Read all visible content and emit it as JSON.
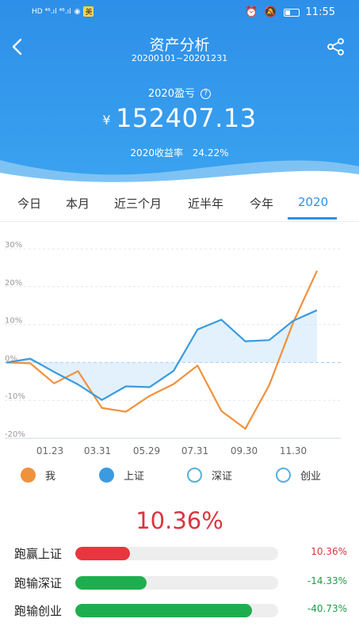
{
  "statusbar": {
    "time": "11:55",
    "app_badge": "美",
    "left_icons": "HD ⁴⁶.ıl ⁴⁶.ıl"
  },
  "header": {
    "title": "资产分析",
    "date_range": "20200101~20201231",
    "pl_label": "2020盈亏",
    "currency": "¥",
    "amount": "152407.13",
    "rate_label": "2020收益率",
    "rate_value": "24.22%"
  },
  "tabs": [
    {
      "label": "今日",
      "active": false
    },
    {
      "label": "本月",
      "active": false
    },
    {
      "label": "近三个月",
      "active": false
    },
    {
      "label": "近半年",
      "active": false
    },
    {
      "label": "今年",
      "active": false
    },
    {
      "label": "2020",
      "active": true
    }
  ],
  "chart_data": {
    "type": "line",
    "x_ticks": [
      "01.23",
      "03.31",
      "05.29",
      "07.31",
      "09.30",
      "11.30"
    ],
    "y_ticks": [
      "30%",
      "20%",
      "10%",
      "0%",
      "-10%",
      "-20%"
    ],
    "ylim": [
      -20,
      30
    ],
    "series": [
      {
        "name": "我",
        "color": "#f0913c",
        "values": [
          0,
          -0.2,
          -5.5,
          -2.3,
          -12,
          -13,
          -8.8,
          -5.7,
          -0.8,
          -12.8,
          -17.5,
          -6,
          10.5,
          24.2
        ]
      },
      {
        "name": "上证",
        "color": "#3a9be0",
        "area": true,
        "values": [
          0,
          1,
          -2.5,
          -5.8,
          -9.9,
          -6.3,
          -6.5,
          -2.2,
          8.7,
          11.3,
          5.6,
          5.9,
          11,
          13.8
        ]
      }
    ],
    "legend": [
      {
        "name": "我",
        "color": "#f0913c",
        "style": "filled"
      },
      {
        "name": "上证",
        "color": "#3a9be0",
        "style": "filled"
      },
      {
        "name": "深证",
        "color": "#55aee0",
        "style": "hollow"
      },
      {
        "name": "创业",
        "color": "#55aee0",
        "style": "hollow"
      }
    ]
  },
  "summary": {
    "big_pct": "10.36%",
    "bars": [
      {
        "label": "跑赢上证",
        "value": "10.36%",
        "fill": 0.27,
        "color": "#e8363f",
        "text_color": "#d9363e"
      },
      {
        "label": "跑输深证",
        "value": "-14.33%",
        "fill": 0.35,
        "color": "#1fae4f",
        "text_color": "#1e9c48"
      },
      {
        "label": "跑输创业",
        "value": "-40.73%",
        "fill": 0.87,
        "color": "#1fae4f",
        "text_color": "#1e9c48"
      }
    ]
  }
}
